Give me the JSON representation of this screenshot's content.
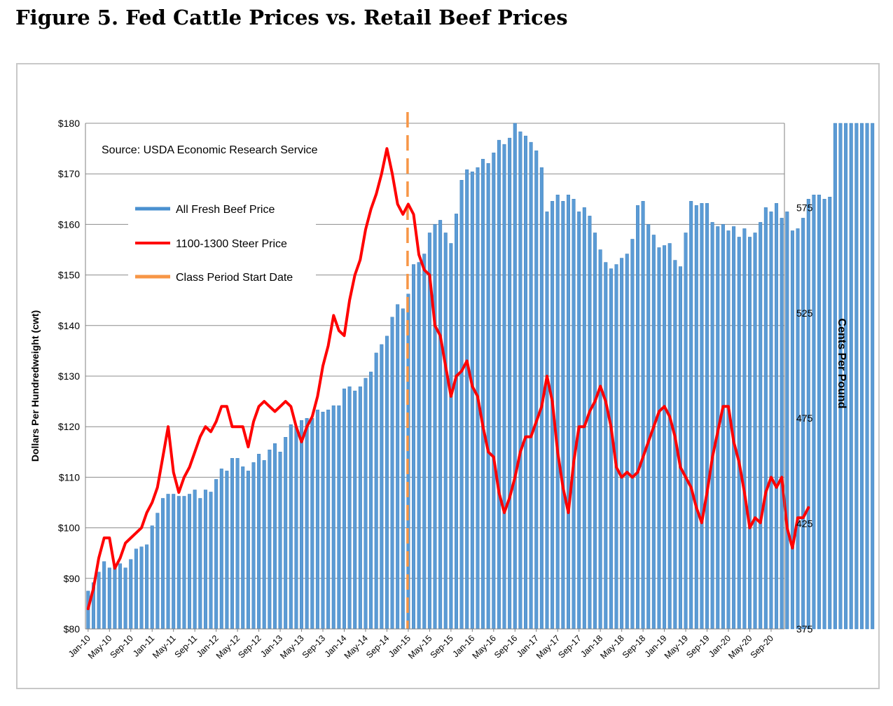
{
  "figure_title": "Figure 5.  Fed Cattle Prices vs. Retail Beef Prices",
  "chart_data": {
    "type": "bar+line",
    "title": "Figure 5.  Fed Cattle Prices vs. Retail Beef Prices",
    "source_note": "Source:  USDA Economic Research Service",
    "ylabel": "Dollars Per Hundredweight (cwt)",
    "y2label": "Cents Per Pound",
    "ylim": [
      80,
      180
    ],
    "y2lim": [
      375,
      615
    ],
    "y_ticks": [
      "$80",
      "$90",
      "$100",
      "$110",
      "$120",
      "$130",
      "$140",
      "$150",
      "$160",
      "$170",
      "$180"
    ],
    "y2_ticks": [
      "375",
      "425",
      "475",
      "525",
      "575"
    ],
    "x_tick_labels": [
      "Jan-10",
      "May-10",
      "Sep-10",
      "Jan-11",
      "May-11",
      "Sep-11",
      "Jan-12",
      "May-12",
      "Sep-12",
      "Jan-13",
      "May-13",
      "Sep-13",
      "Jan-14",
      "May-14",
      "Sep-14",
      "Jan-15",
      "May-15",
      "Sep-15",
      "Jan-16",
      "May-16",
      "Sep-16",
      "Jan-17",
      "May-17",
      "Sep-17",
      "Jan-18",
      "May-18",
      "Sep-18",
      "Jan-19",
      "May-19",
      "Sep-19",
      "Jan-20",
      "May-20",
      "Sep-20"
    ],
    "legend": [
      {
        "label": "All Fresh Beef Price",
        "color": "#4a90d0"
      },
      {
        "label": "1100-1300 Steer Price",
        "color": "#ff0000"
      },
      {
        "label": "Class Period Start Date",
        "color": "#f79646"
      }
    ],
    "series": [
      {
        "name": "All Fresh Beef Price",
        "type": "bar",
        "axis": "right",
        "unit": "cents per pound",
        "start": "Jan-10",
        "values": [
          393,
          397,
          402,
          407,
          404,
          405,
          406,
          404,
          408,
          413,
          414,
          415,
          424,
          430,
          437,
          439,
          439,
          438,
          438,
          439,
          441,
          437,
          441,
          440,
          446,
          451,
          450,
          456,
          456,
          452,
          450,
          454,
          458,
          455,
          460,
          463,
          459,
          466,
          472,
          471,
          474,
          475,
          475,
          479,
          478,
          479,
          481,
          481,
          489,
          490,
          488,
          490,
          494,
          497,
          506,
          510,
          514,
          523,
          529,
          527,
          534,
          548,
          549,
          553,
          563,
          567,
          569,
          563,
          558,
          572,
          588,
          593,
          592,
          594,
          598,
          596,
          601,
          607,
          605,
          608,
          615,
          611,
          609,
          606,
          602,
          594,
          573,
          578,
          581,
          578,
          581,
          579,
          573,
          575,
          571,
          563,
          555,
          549,
          546,
          548,
          551,
          553,
          560,
          576,
          578,
          567,
          562,
          556,
          557,
          558,
          550,
          547,
          563,
          578,
          576,
          577,
          577,
          568,
          566,
          567,
          564,
          566,
          561,
          565,
          561,
          563,
          568,
          575,
          573,
          577,
          570,
          573,
          564,
          565,
          570,
          579,
          581,
          581,
          579,
          580,
          615,
          615,
          615,
          615,
          615,
          615,
          615,
          615
        ]
      },
      {
        "name": "1100-1300 Steer Price",
        "type": "line",
        "axis": "left",
        "unit": "dollars per cwt",
        "start": "Jan-10",
        "values": [
          84,
          88,
          94,
          98,
          98,
          92,
          94,
          97,
          98,
          99,
          100,
          103,
          105,
          108,
          114,
          120,
          111,
          107,
          110,
          112,
          115,
          118,
          120,
          119,
          121,
          124,
          124,
          120,
          120,
          120,
          116,
          121,
          124,
          125,
          124,
          123,
          124,
          125,
          124,
          120,
          117,
          120,
          122,
          126,
          132,
          136,
          142,
          139,
          138,
          145,
          150,
          153,
          159,
          163,
          166,
          170,
          175,
          170,
          164,
          162,
          164,
          162,
          154,
          151,
          150,
          140,
          138,
          132,
          126,
          130,
          131,
          133,
          128,
          126,
          120,
          115,
          114,
          107,
          103,
          106,
          110,
          115,
          118,
          118,
          121,
          124,
          130,
          125,
          115,
          108,
          103,
          113,
          120,
          120,
          123,
          125,
          128,
          125,
          120,
          112,
          110,
          111,
          110,
          111,
          114,
          117,
          120,
          123,
          124,
          122,
          118,
          112,
          110,
          108,
          104,
          101,
          107,
          114,
          119,
          124,
          124,
          117,
          113,
          107,
          100,
          102,
          101,
          107,
          110,
          108,
          110,
          100,
          96,
          102,
          102,
          104
        ]
      }
    ],
    "vertical_marker": {
      "label": "Class Period Start Date",
      "x": "Jan-15"
    }
  }
}
